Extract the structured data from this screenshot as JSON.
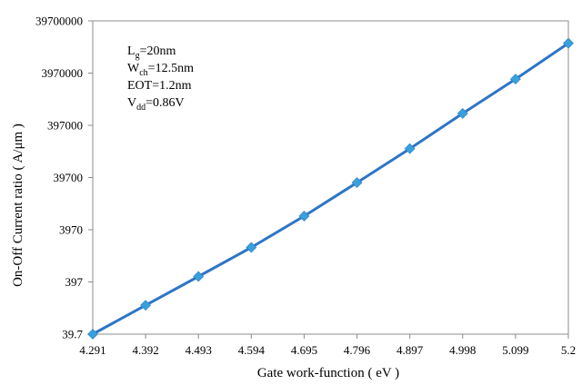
{
  "chart_data": {
    "type": "line",
    "title": "",
    "xlabel": "Gate work-function ( eV )",
    "ylabel": "On-Off  Current  ratio    ( A/μm )",
    "x_tick_labels": [
      "4.291",
      "4.392",
      "4.493",
      "4.594",
      "4.695",
      "4.796",
      "4.897",
      "4.998",
      "5.099",
      "5.2"
    ],
    "y_tick_labels": [
      "39.7",
      "397",
      "3970",
      "39700",
      "397000",
      "3970000",
      "39700000"
    ],
    "y_scale": "log",
    "ylim": [
      39.7,
      39700000
    ],
    "grid": false,
    "x": [
      4.291,
      4.392,
      4.493,
      4.594,
      4.695,
      4.796,
      4.897,
      4.998,
      5.099,
      5.2
    ],
    "series": [
      {
        "color": "#2e75c6",
        "marker": "diamond",
        "marker_color": "#3aa0dc",
        "values": [
          39.7,
          142,
          505,
          1820,
          7250,
          31700,
          142000,
          670000,
          3050000,
          14800000
        ]
      }
    ],
    "annotations": [
      {
        "main": "L",
        "sub": "g",
        "rest": "=20nm"
      },
      {
        "main": "W",
        "sub": "ch",
        "rest": "=12.5nm"
      },
      {
        "main": "EOT",
        "sub": "",
        "rest": "=1.2nm"
      },
      {
        "main": "V",
        "sub": "dd",
        "rest": "=0.86V"
      }
    ]
  }
}
